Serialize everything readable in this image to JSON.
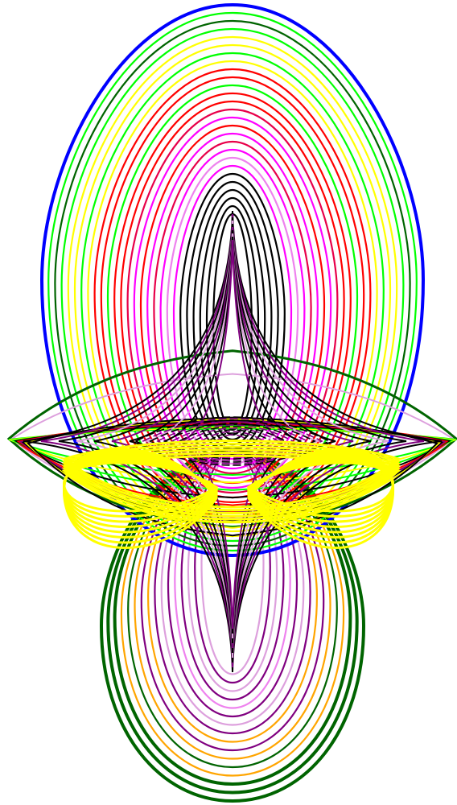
{
  "figure": {
    "background": "#ffffff",
    "palette": {
      "blue": "#0000ff",
      "green": "#00ff00",
      "dark_green": "#006400",
      "yellow": "#ffff00",
      "red": "#ff0000",
      "magenta": "#ff00ff",
      "crimson": "#e8004a",
      "black": "#000000",
      "purple": "#800080",
      "orange": "#ffa500",
      "plum": "#dda0dd",
      "violet": "#ee82ee"
    }
  }
}
